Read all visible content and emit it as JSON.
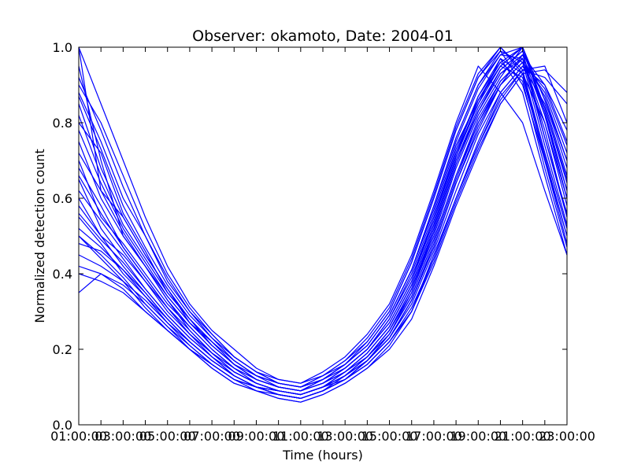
{
  "chart_data": {
    "type": "line",
    "title": "Observer: okamoto, Date: 2004-01",
    "xlabel": "Time (hours)",
    "ylabel": "Normalized detection count",
    "xlim": [
      1,
      23
    ],
    "ylim": [
      0,
      1
    ],
    "x_ticks": [
      {
        "value": 1,
        "label": "01:00:00"
      },
      {
        "value": 2,
        "label": "02:00:00"
      },
      {
        "value": 3,
        "label": "03:00:00"
      },
      {
        "value": 4,
        "label": "04:00:00"
      },
      {
        "value": 5,
        "label": "05:00:00"
      },
      {
        "value": 6,
        "label": "06:00:00"
      },
      {
        "value": 7,
        "label": "07:00:00"
      },
      {
        "value": 8,
        "label": "08:00:00"
      },
      {
        "value": 9,
        "label": "09:00:00"
      },
      {
        "value": 10,
        "label": "10:00:00"
      },
      {
        "value": 11,
        "label": "11:00:00"
      },
      {
        "value": 12,
        "label": "12:00:00"
      },
      {
        "value": 13,
        "label": "13:00:00"
      },
      {
        "value": 14,
        "label": "14:00:00"
      },
      {
        "value": 15,
        "label": "15:00:00"
      },
      {
        "value": 16,
        "label": "16:00:00"
      },
      {
        "value": 17,
        "label": "17:00:00"
      },
      {
        "value": 18,
        "label": "18:00:00"
      },
      {
        "value": 19,
        "label": "19:00:00"
      },
      {
        "value": 20,
        "label": "20:00:00"
      },
      {
        "value": 21,
        "label": "21:00:00"
      },
      {
        "value": 22,
        "label": "22:00:00"
      },
      {
        "value": 23,
        "label": "23:00:00"
      }
    ],
    "y_ticks": [
      {
        "value": 0,
        "label": "0.0"
      },
      {
        "value": 0.2,
        "label": "0.2"
      },
      {
        "value": 0.4,
        "label": "0.4"
      },
      {
        "value": 0.6,
        "label": "0.6"
      },
      {
        "value": 0.8,
        "label": "0.8"
      },
      {
        "value": 1,
        "label": "1.0"
      }
    ],
    "grid": false,
    "line_color": "#0000ff",
    "x": [
      1,
      2,
      3,
      4,
      5,
      6,
      7,
      8,
      9,
      10,
      11,
      12,
      13,
      14,
      15,
      16,
      17,
      18,
      19,
      20,
      21,
      22,
      23
    ],
    "series": [
      {
        "values": [
          1.0,
          0.62,
          0.55,
          0.45,
          0.36,
          0.27,
          0.22,
          0.16,
          0.12,
          0.1,
          0.09,
          0.12,
          0.15,
          0.2,
          0.28,
          0.4,
          0.56,
          0.74,
          0.86,
          0.95,
          1.0,
          0.82,
          0.62
        ]
      },
      {
        "values": [
          0.95,
          0.7,
          0.5,
          0.42,
          0.33,
          0.25,
          0.19,
          0.14,
          0.11,
          0.09,
          0.08,
          0.1,
          0.14,
          0.18,
          0.25,
          0.36,
          0.52,
          0.7,
          0.83,
          0.93,
          0.97,
          0.78,
          0.55
        ]
      },
      {
        "values": [
          0.88,
          0.75,
          0.6,
          0.5,
          0.38,
          0.3,
          0.24,
          0.18,
          0.14,
          0.11,
          0.1,
          0.13,
          0.16,
          0.22,
          0.3,
          0.43,
          0.6,
          0.78,
          0.92,
          1.0,
          0.93,
          0.7,
          0.48
        ]
      },
      {
        "values": [
          0.7,
          0.55,
          0.48,
          0.4,
          0.32,
          0.26,
          0.2,
          0.15,
          0.12,
          0.1,
          0.09,
          0.11,
          0.15,
          0.2,
          0.27,
          0.38,
          0.55,
          0.72,
          0.85,
          0.97,
          0.88,
          0.66,
          0.45
        ]
      },
      {
        "values": [
          0.6,
          0.5,
          0.45,
          0.38,
          0.3,
          0.24,
          0.18,
          0.13,
          0.1,
          0.08,
          0.07,
          0.09,
          0.13,
          0.18,
          0.24,
          0.35,
          0.5,
          0.68,
          0.82,
          0.92,
          1.0,
          0.86,
          0.7
        ]
      },
      {
        "values": [
          0.55,
          0.48,
          0.4,
          0.34,
          0.28,
          0.22,
          0.17,
          0.13,
          0.1,
          0.09,
          0.08,
          0.1,
          0.12,
          0.17,
          0.23,
          0.33,
          0.48,
          0.65,
          0.8,
          0.9,
          0.98,
          0.9,
          0.75
        ]
      },
      {
        "values": [
          0.45,
          0.42,
          0.38,
          0.33,
          0.27,
          0.21,
          0.16,
          0.12,
          0.1,
          0.08,
          0.07,
          0.09,
          0.12,
          0.16,
          0.22,
          0.3,
          0.45,
          0.6,
          0.75,
          0.88,
          0.95,
          0.85,
          0.66
        ]
      },
      {
        "values": [
          0.35,
          0.4,
          0.36,
          0.3,
          0.25,
          0.2,
          0.15,
          0.11,
          0.09,
          0.07,
          0.06,
          0.08,
          0.11,
          0.15,
          0.2,
          0.28,
          0.42,
          0.58,
          0.72,
          0.85,
          0.93,
          0.8,
          0.6
        ]
      },
      {
        "values": [
          1.0,
          0.85,
          0.7,
          0.55,
          0.42,
          0.32,
          0.25,
          0.2,
          0.15,
          0.12,
          0.11,
          0.14,
          0.18,
          0.24,
          0.32,
          0.45,
          0.62,
          0.8,
          0.95,
          0.88,
          0.8,
          0.62,
          0.45
        ]
      },
      {
        "values": [
          0.8,
          0.72,
          0.56,
          0.46,
          0.35,
          0.28,
          0.21,
          0.16,
          0.13,
          0.11,
          0.1,
          0.12,
          0.16,
          0.21,
          0.29,
          0.41,
          0.58,
          0.76,
          0.9,
          0.99,
          0.9,
          0.7,
          0.5
        ]
      },
      {
        "values": [
          0.65,
          0.52,
          0.44,
          0.36,
          0.29,
          0.23,
          0.18,
          0.14,
          0.11,
          0.09,
          0.08,
          0.1,
          0.13,
          0.18,
          0.25,
          0.36,
          0.52,
          0.7,
          0.84,
          0.94,
          0.99,
          0.76,
          0.56
        ]
      },
      {
        "values": [
          0.5,
          0.45,
          0.39,
          0.32,
          0.26,
          0.2,
          0.16,
          0.12,
          0.09,
          0.08,
          0.07,
          0.09,
          0.12,
          0.17,
          0.23,
          0.33,
          0.47,
          0.64,
          0.78,
          0.9,
          0.96,
          0.88,
          0.72
        ]
      },
      {
        "values": [
          0.75,
          0.6,
          0.5,
          0.42,
          0.34,
          0.27,
          0.21,
          0.16,
          0.12,
          0.1,
          0.09,
          0.11,
          0.14,
          0.19,
          0.26,
          0.37,
          0.53,
          0.71,
          0.85,
          0.95,
          1.0,
          0.84,
          0.64
        ]
      },
      {
        "values": [
          0.9,
          0.8,
          0.66,
          0.52,
          0.4,
          0.31,
          0.24,
          0.18,
          0.14,
          0.12,
          0.11,
          0.13,
          0.17,
          0.23,
          0.31,
          0.44,
          0.61,
          0.79,
          0.93,
          1.0,
          0.94,
          0.72,
          0.52
        ]
      },
      {
        "values": [
          0.4,
          0.38,
          0.35,
          0.3,
          0.25,
          0.2,
          0.16,
          0.12,
          0.1,
          0.08,
          0.07,
          0.09,
          0.12,
          0.16,
          0.22,
          0.31,
          0.44,
          0.6,
          0.74,
          0.86,
          0.94,
          0.95,
          0.8
        ]
      },
      {
        "values": [
          0.58,
          0.5,
          0.42,
          0.35,
          0.28,
          0.22,
          0.17,
          0.13,
          0.1,
          0.09,
          0.08,
          0.1,
          0.13,
          0.17,
          0.24,
          0.34,
          0.49,
          0.66,
          0.8,
          0.91,
          0.97,
          0.8,
          0.58
        ]
      },
      {
        "values": [
          0.68,
          0.58,
          0.47,
          0.39,
          0.31,
          0.25,
          0.19,
          0.15,
          0.11,
          0.09,
          0.08,
          0.1,
          0.14,
          0.19,
          0.26,
          0.37,
          0.53,
          0.71,
          0.86,
          0.96,
          0.91,
          0.68,
          0.47
        ]
      },
      {
        "values": [
          0.82,
          0.66,
          0.53,
          0.44,
          0.35,
          0.28,
          0.22,
          0.17,
          0.13,
          0.11,
          0.1,
          0.12,
          0.16,
          0.21,
          0.29,
          0.41,
          0.57,
          0.75,
          0.89,
          0.98,
          1.0,
          0.86,
          0.68
        ]
      },
      {
        "values": [
          0.48,
          0.46,
          0.41,
          0.35,
          0.28,
          0.22,
          0.17,
          0.13,
          0.1,
          0.08,
          0.07,
          0.09,
          0.12,
          0.17,
          0.23,
          0.32,
          0.46,
          0.62,
          0.77,
          0.88,
          0.95,
          0.9,
          0.78
        ]
      },
      {
        "values": [
          0.62,
          0.54,
          0.46,
          0.38,
          0.31,
          0.24,
          0.19,
          0.14,
          0.11,
          0.09,
          0.08,
          0.1,
          0.13,
          0.18,
          0.25,
          0.35,
          0.51,
          0.69,
          0.83,
          0.93,
          0.98,
          0.82,
          0.6
        ]
      },
      {
        "values": [
          0.92,
          0.78,
          0.63,
          0.5,
          0.39,
          0.3,
          0.23,
          0.18,
          0.14,
          0.11,
          0.1,
          0.13,
          0.17,
          0.22,
          0.3,
          0.43,
          0.6,
          0.78,
          0.92,
          0.99,
          0.96,
          0.74,
          0.53
        ]
      },
      {
        "values": [
          0.56,
          0.49,
          0.43,
          0.36,
          0.29,
          0.23,
          0.18,
          0.13,
          0.1,
          0.09,
          0.08,
          0.1,
          0.13,
          0.17,
          0.24,
          0.34,
          0.49,
          0.66,
          0.81,
          0.91,
          0.97,
          0.87,
          0.7
        ]
      },
      {
        "values": [
          0.72,
          0.62,
          0.51,
          0.42,
          0.33,
          0.26,
          0.2,
          0.15,
          0.12,
          0.1,
          0.09,
          0.11,
          0.14,
          0.19,
          0.26,
          0.37,
          0.53,
          0.71,
          0.86,
          0.95,
          0.92,
          0.71,
          0.5
        ]
      },
      {
        "values": [
          0.42,
          0.4,
          0.37,
          0.32,
          0.26,
          0.21,
          0.16,
          0.12,
          0.1,
          0.08,
          0.07,
          0.09,
          0.12,
          0.16,
          0.22,
          0.3,
          0.44,
          0.6,
          0.74,
          0.87,
          0.94,
          0.92,
          0.85
        ]
      },
      {
        "values": [
          0.85,
          0.68,
          0.55,
          0.45,
          0.36,
          0.28,
          0.22,
          0.17,
          0.13,
          0.1,
          0.09,
          0.12,
          0.15,
          0.2,
          0.28,
          0.39,
          0.55,
          0.73,
          0.87,
          0.96,
          1.0,
          0.83,
          0.62
        ]
      },
      {
        "values": [
          0.52,
          0.47,
          0.41,
          0.34,
          0.27,
          0.22,
          0.17,
          0.13,
          0.1,
          0.08,
          0.07,
          0.09,
          0.12,
          0.17,
          0.23,
          0.33,
          0.47,
          0.64,
          0.79,
          0.9,
          0.96,
          0.89,
          0.74
        ]
      },
      {
        "values": [
          0.78,
          0.64,
          0.52,
          0.43,
          0.34,
          0.27,
          0.21,
          0.16,
          0.12,
          0.1,
          0.09,
          0.11,
          0.15,
          0.2,
          0.27,
          0.38,
          0.54,
          0.72,
          0.87,
          0.97,
          0.93,
          0.72,
          0.52
        ]
      },
      {
        "values": [
          0.66,
          0.56,
          0.47,
          0.39,
          0.31,
          0.24,
          0.19,
          0.14,
          0.11,
          0.09,
          0.08,
          0.1,
          0.13,
          0.18,
          0.25,
          0.36,
          0.51,
          0.69,
          0.83,
          0.94,
          0.99,
          0.84,
          0.65
        ]
      },
      {
        "values": [
          0.5,
          0.44,
          0.38,
          0.31,
          0.25,
          0.2,
          0.15,
          0.11,
          0.09,
          0.07,
          0.06,
          0.08,
          0.11,
          0.15,
          0.21,
          0.3,
          0.43,
          0.59,
          0.73,
          0.85,
          0.93,
          0.94,
          0.88
        ]
      },
      {
        "values": [
          0.87,
          0.73,
          0.58,
          0.47,
          0.37,
          0.29,
          0.23,
          0.17,
          0.13,
          0.11,
          0.1,
          0.12,
          0.16,
          0.21,
          0.29,
          0.41,
          0.58,
          0.76,
          0.9,
          0.98,
          0.97,
          0.76,
          0.55
        ]
      }
    ]
  }
}
